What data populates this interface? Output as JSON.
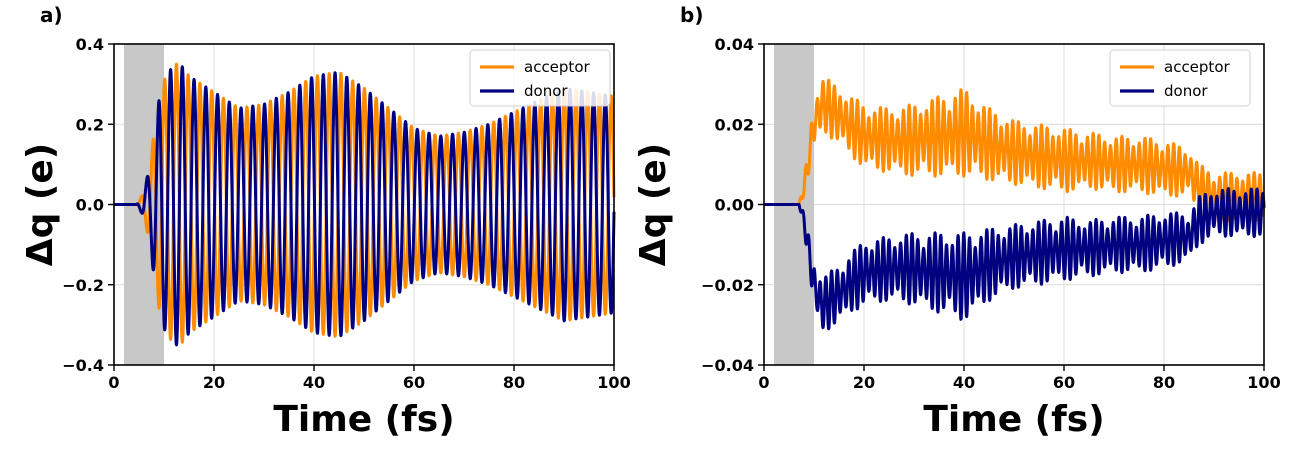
{
  "chart_data": [
    {
      "panel_label": "a)",
      "type": "line",
      "xlabel": "Time (fs)",
      "ylabel": "Δq (e)",
      "xlim": [
        0,
        100
      ],
      "ylim": [
        -0.4,
        0.4
      ],
      "xticks": [
        0,
        20,
        40,
        60,
        80,
        100
      ],
      "xtick_labels": [
        "0",
        "20",
        "40",
        "60",
        "80",
        "100"
      ],
      "yticks": [
        -0.4,
        -0.2,
        0.0,
        0.2,
        0.4
      ],
      "ytick_labels": [
        "−0.4",
        "−0.2",
        "0.0",
        "0.2",
        "0.4"
      ],
      "grid": true,
      "shaded_region": {
        "x_start": 2,
        "x_end": 10,
        "color": "#c8c8c8"
      },
      "legend_position": "top-right",
      "series": [
        {
          "name": "acceptor",
          "color": "#ff8c00",
          "x": [
            0,
            4.5,
            5,
            5.5,
            6,
            6.5,
            7,
            7.5,
            8,
            8.5,
            9,
            9.5,
            10,
            11,
            12,
            13,
            14,
            15,
            20,
            25,
            30,
            35,
            40,
            45,
            50,
            55,
            60,
            65,
            70,
            75,
            80,
            85,
            90,
            95,
            100
          ],
          "amplitude": [
            0,
            0,
            0.01,
            0.02,
            0.04,
            0.06,
            0.09,
            0.13,
            0.18,
            0.22,
            0.26,
            0.29,
            0.31,
            0.33,
            0.35,
            0.35,
            0.34,
            0.32,
            0.28,
            0.24,
            0.25,
            0.28,
            0.32,
            0.33,
            0.29,
            0.24,
            0.19,
            0.17,
            0.18,
            0.2,
            0.23,
            0.26,
            0.29,
            0.28,
            0.27
          ],
          "period_fs": 2.35,
          "phase_offset_fs": 7.2,
          "offset": 0.0
        },
        {
          "name": "donor",
          "color": "#000080",
          "x": [
            0,
            4.5,
            5,
            5.5,
            6,
            6.5,
            7,
            7.5,
            8,
            8.5,
            9,
            9.5,
            10,
            11,
            12,
            13,
            14,
            15,
            20,
            25,
            30,
            35,
            40,
            45,
            50,
            55,
            60,
            65,
            70,
            75,
            80,
            85,
            90,
            95,
            100
          ],
          "amplitude": [
            0,
            0,
            0.01,
            0.02,
            0.04,
            0.06,
            0.09,
            0.13,
            0.18,
            0.22,
            0.26,
            0.29,
            0.31,
            0.33,
            0.35,
            0.35,
            0.34,
            0.32,
            0.28,
            0.24,
            0.25,
            0.28,
            0.32,
            0.33,
            0.29,
            0.24,
            0.19,
            0.17,
            0.18,
            0.2,
            0.23,
            0.26,
            0.29,
            0.28,
            0.27
          ],
          "period_fs": 2.35,
          "phase_offset_fs": 8.375,
          "offset": 0.0
        }
      ]
    },
    {
      "panel_label": "b)",
      "type": "line",
      "xlabel": "Time (fs)",
      "ylabel": "Δq (e)",
      "xlim": [
        0,
        100
      ],
      "ylim": [
        -0.04,
        0.04
      ],
      "xticks": [
        0,
        20,
        40,
        60,
        80,
        100
      ],
      "xtick_labels": [
        "0",
        "20",
        "40",
        "60",
        "80",
        "100"
      ],
      "yticks": [
        -0.04,
        -0.02,
        0.0,
        0.02,
        0.04
      ],
      "ytick_labels": [
        "−0.04",
        "−0.02",
        "0.00",
        "0.02",
        "0.04"
      ],
      "grid": true,
      "shaded_region": {
        "x_start": 2,
        "x_end": 10,
        "color": "#c8c8c8"
      },
      "legend_position": "top-right",
      "series": [
        {
          "name": "acceptor",
          "color": "#ff8c00",
          "x": [
            0,
            7,
            8,
            9,
            10,
            11,
            12,
            15,
            20,
            25,
            30,
            35,
            40,
            45,
            50,
            55,
            60,
            65,
            70,
            75,
            80,
            85,
            87,
            90,
            95,
            100
          ],
          "mean": [
            0,
            0,
            0.004,
            0.012,
            0.02,
            0.024,
            0.025,
            0.022,
            0.017,
            0.016,
            0.016,
            0.017,
            0.018,
            0.015,
            0.013,
            0.012,
            0.011,
            0.011,
            0.01,
            0.01,
            0.009,
            0.008,
            0.004,
            0.002,
            0.002,
            0.002
          ],
          "amplitude": [
            0,
            0,
            0.002,
            0.004,
            0.006,
            0.007,
            0.007,
            0.007,
            0.008,
            0.008,
            0.009,
            0.01,
            0.011,
            0.009,
            0.008,
            0.008,
            0.008,
            0.007,
            0.007,
            0.007,
            0.007,
            0.006,
            0.006,
            0.006,
            0.006,
            0.006
          ],
          "period_fs": 1.15,
          "beat_period_fs": 5.3
        },
        {
          "name": "donor",
          "color": "#000080",
          "x": [
            0,
            7,
            8,
            9,
            10,
            11,
            12,
            15,
            20,
            25,
            30,
            35,
            40,
            45,
            50,
            55,
            60,
            65,
            70,
            75,
            80,
            85,
            87,
            90,
            95,
            100
          ],
          "mean": [
            0,
            0,
            -0.004,
            -0.012,
            -0.02,
            -0.024,
            -0.025,
            -0.022,
            -0.017,
            -0.016,
            -0.016,
            -0.017,
            -0.018,
            -0.015,
            -0.013,
            -0.012,
            -0.011,
            -0.011,
            -0.01,
            -0.01,
            -0.009,
            -0.008,
            -0.004,
            -0.002,
            -0.002,
            -0.002
          ],
          "amplitude": [
            0,
            0,
            0.002,
            0.004,
            0.006,
            0.007,
            0.007,
            0.007,
            0.008,
            0.008,
            0.009,
            0.01,
            0.011,
            0.009,
            0.008,
            0.008,
            0.008,
            0.007,
            0.007,
            0.007,
            0.007,
            0.006,
            0.006,
            0.006,
            0.006,
            0.006
          ],
          "period_fs": 1.15,
          "beat_period_fs": 5.3
        }
      ]
    }
  ]
}
